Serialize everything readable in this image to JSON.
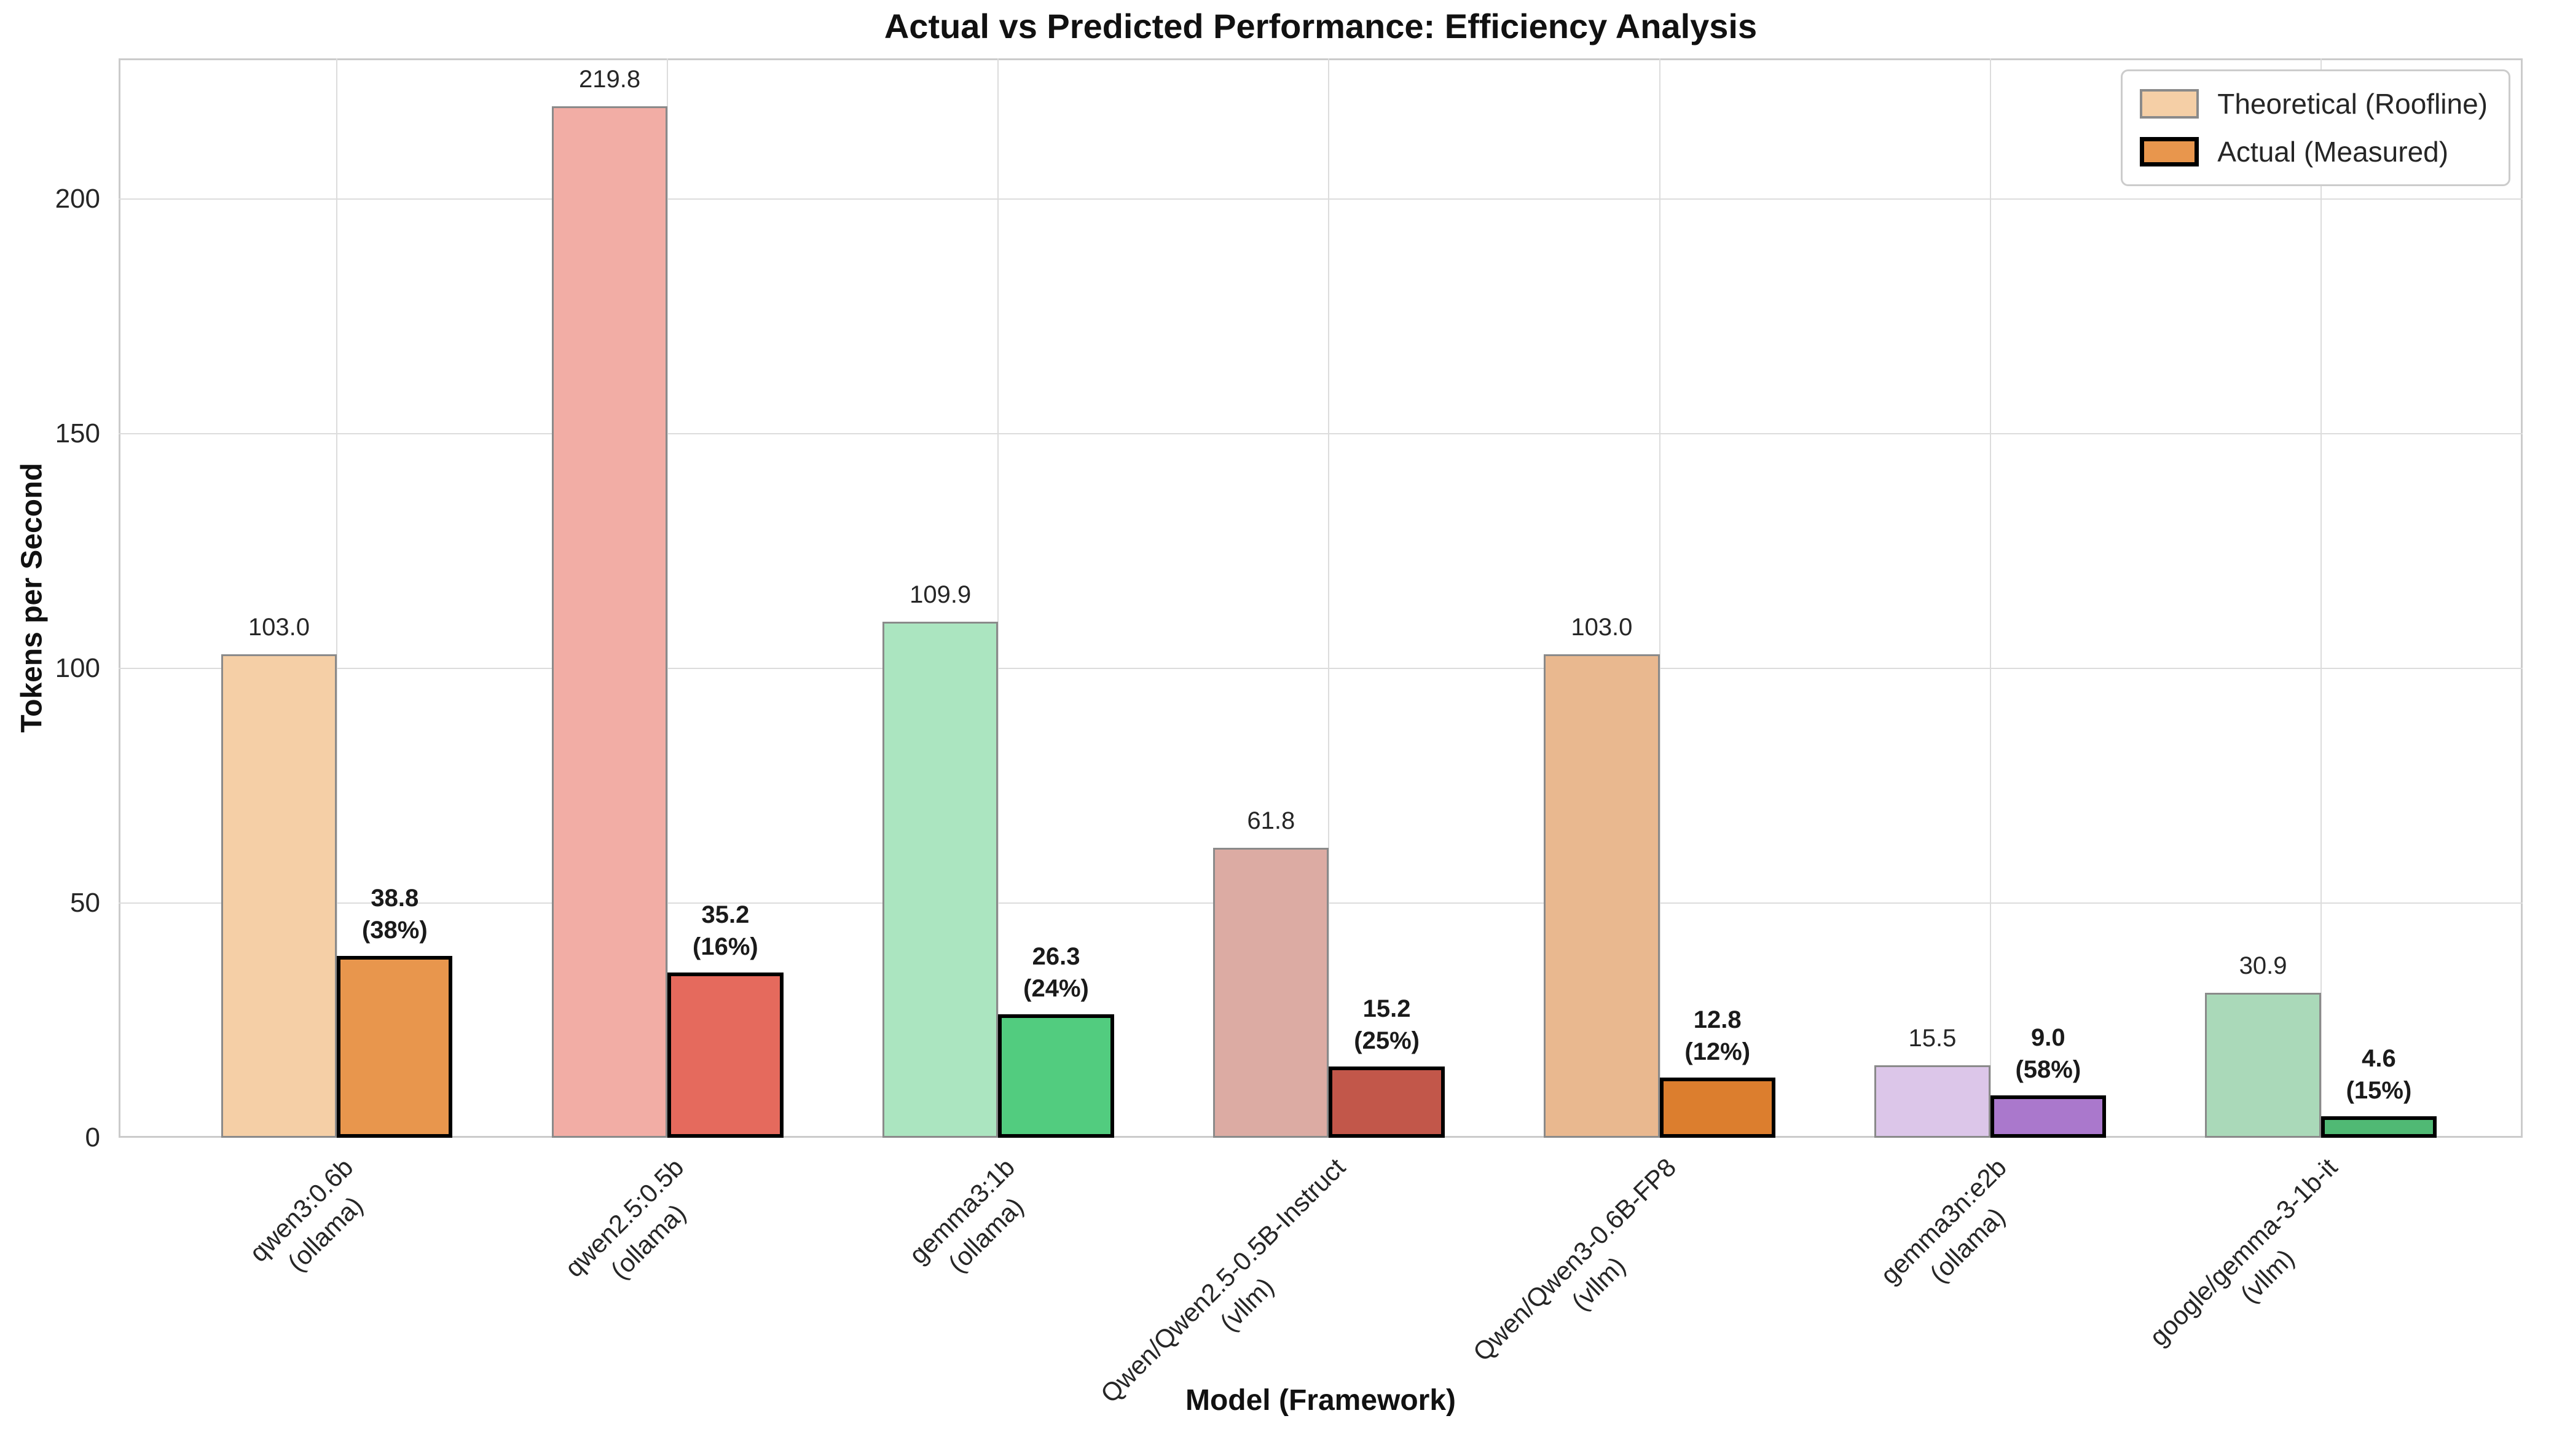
{
  "chart_data": {
    "type": "bar",
    "title": "Actual vs Predicted Performance: Efficiency Analysis",
    "xlabel": "Model (Framework)",
    "ylabel": "Tokens per Second",
    "ylim": [
      0,
      230
    ],
    "yticks": [
      0,
      50,
      100,
      150,
      200
    ],
    "grid": true,
    "legend_position": "upper right",
    "categories": [
      {
        "model": "qwen3:0.6b",
        "framework": "(ollama)"
      },
      {
        "model": "qwen2.5:0.5b",
        "framework": "(ollama)"
      },
      {
        "model": "gemma3:1b",
        "framework": "(ollama)"
      },
      {
        "model": "Qwen/Qwen2.5-0.5B-Instruct",
        "framework": "(vllm)"
      },
      {
        "model": "Qwen/Qwen3-0.6B-FP8",
        "framework": "(vllm)"
      },
      {
        "model": "gemma3n:e2b",
        "framework": "(ollama)"
      },
      {
        "model": "google/gemma-3-1b-it",
        "framework": "(vllm)"
      }
    ],
    "series": [
      {
        "name": "Theoretical (Roofline)",
        "values": [
          103.0,
          219.8,
          109.9,
          61.8,
          103.0,
          15.5,
          30.9
        ],
        "value_labels": [
          "103.0",
          "219.8",
          "109.9",
          "61.8",
          "103.0",
          "15.5",
          "30.9"
        ],
        "fills": [
          "#F5CFA6",
          "#F2ADA5",
          "#ABE5C0",
          "#DCABA3",
          "#E9B88F",
          "#DCC6E9",
          "#AAD9B9"
        ],
        "edge": "#8A8A8A",
        "legend_fill": "#F5CFA6"
      },
      {
        "name": "Actual (Measured)",
        "values": [
          38.8,
          35.2,
          26.3,
          15.2,
          12.8,
          9.0,
          4.6
        ],
        "value_labels": [
          "38.8",
          "35.2",
          "26.3",
          "15.2",
          "12.8",
          "9.0",
          "4.6"
        ],
        "efficiency_labels": [
          "(38%)",
          "(16%)",
          "(24%)",
          "(25%)",
          "(12%)",
          "(58%)",
          "(15%)"
        ],
        "fills": [
          "#E8964D",
          "#E56A5D",
          "#52CC7F",
          "#C2574A",
          "#DC7E2E",
          "#AA78CC",
          "#50B974"
        ],
        "edge": "#000000",
        "legend_fill": "#E8964D"
      }
    ],
    "colors": {
      "grid": "#DCDCDC",
      "spine": "#CBCBCB",
      "text": "#262626"
    }
  }
}
